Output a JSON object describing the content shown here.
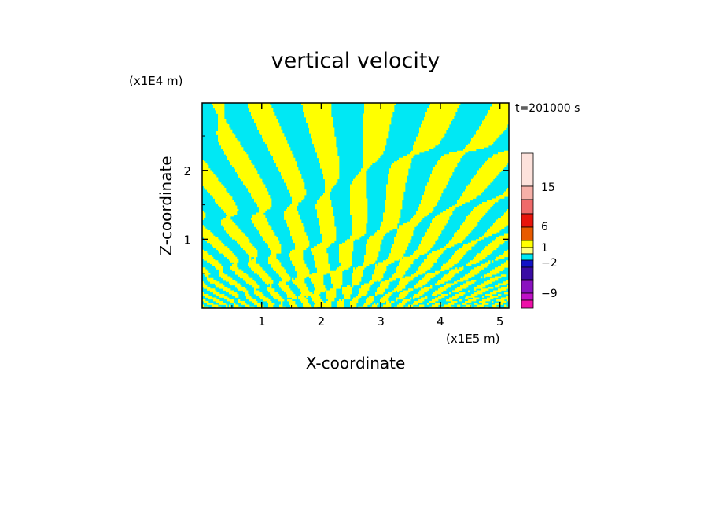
{
  "chart_data": {
    "type": "heatmap",
    "title": "vertical velocity",
    "xlabel": "X-coordinate",
    "ylabel": "Z-coordinate",
    "x_unit": "(x1E5 m)",
    "y_unit": "(x1E4 m)",
    "time_label": "t=201000 s",
    "xlim": [
      0.0,
      5.15
    ],
    "ylim": [
      0.0,
      2.98
    ],
    "x_ticks": [
      "1",
      "2",
      "3",
      "4",
      "5"
    ],
    "y_ticks": [
      "1",
      "2"
    ],
    "colors": {
      "positive_fill": "#ffff00",
      "negative_fill": "#00e8f4"
    },
    "colorbar": {
      "labels": [
        "15",
        "6",
        "1",
        "−2",
        "−9"
      ],
      "colors_top_to_bottom": [
        "#fde2dc",
        "#f6b0a8",
        "#ef6a6a",
        "#e8150c",
        "#e85a00",
        "#ffff00",
        "#ffff80",
        "#00e8f4",
        "#1212c8",
        "#3a0ca4",
        "#8a12c0",
        "#c010c8",
        "#ee10a8"
      ]
    }
  }
}
